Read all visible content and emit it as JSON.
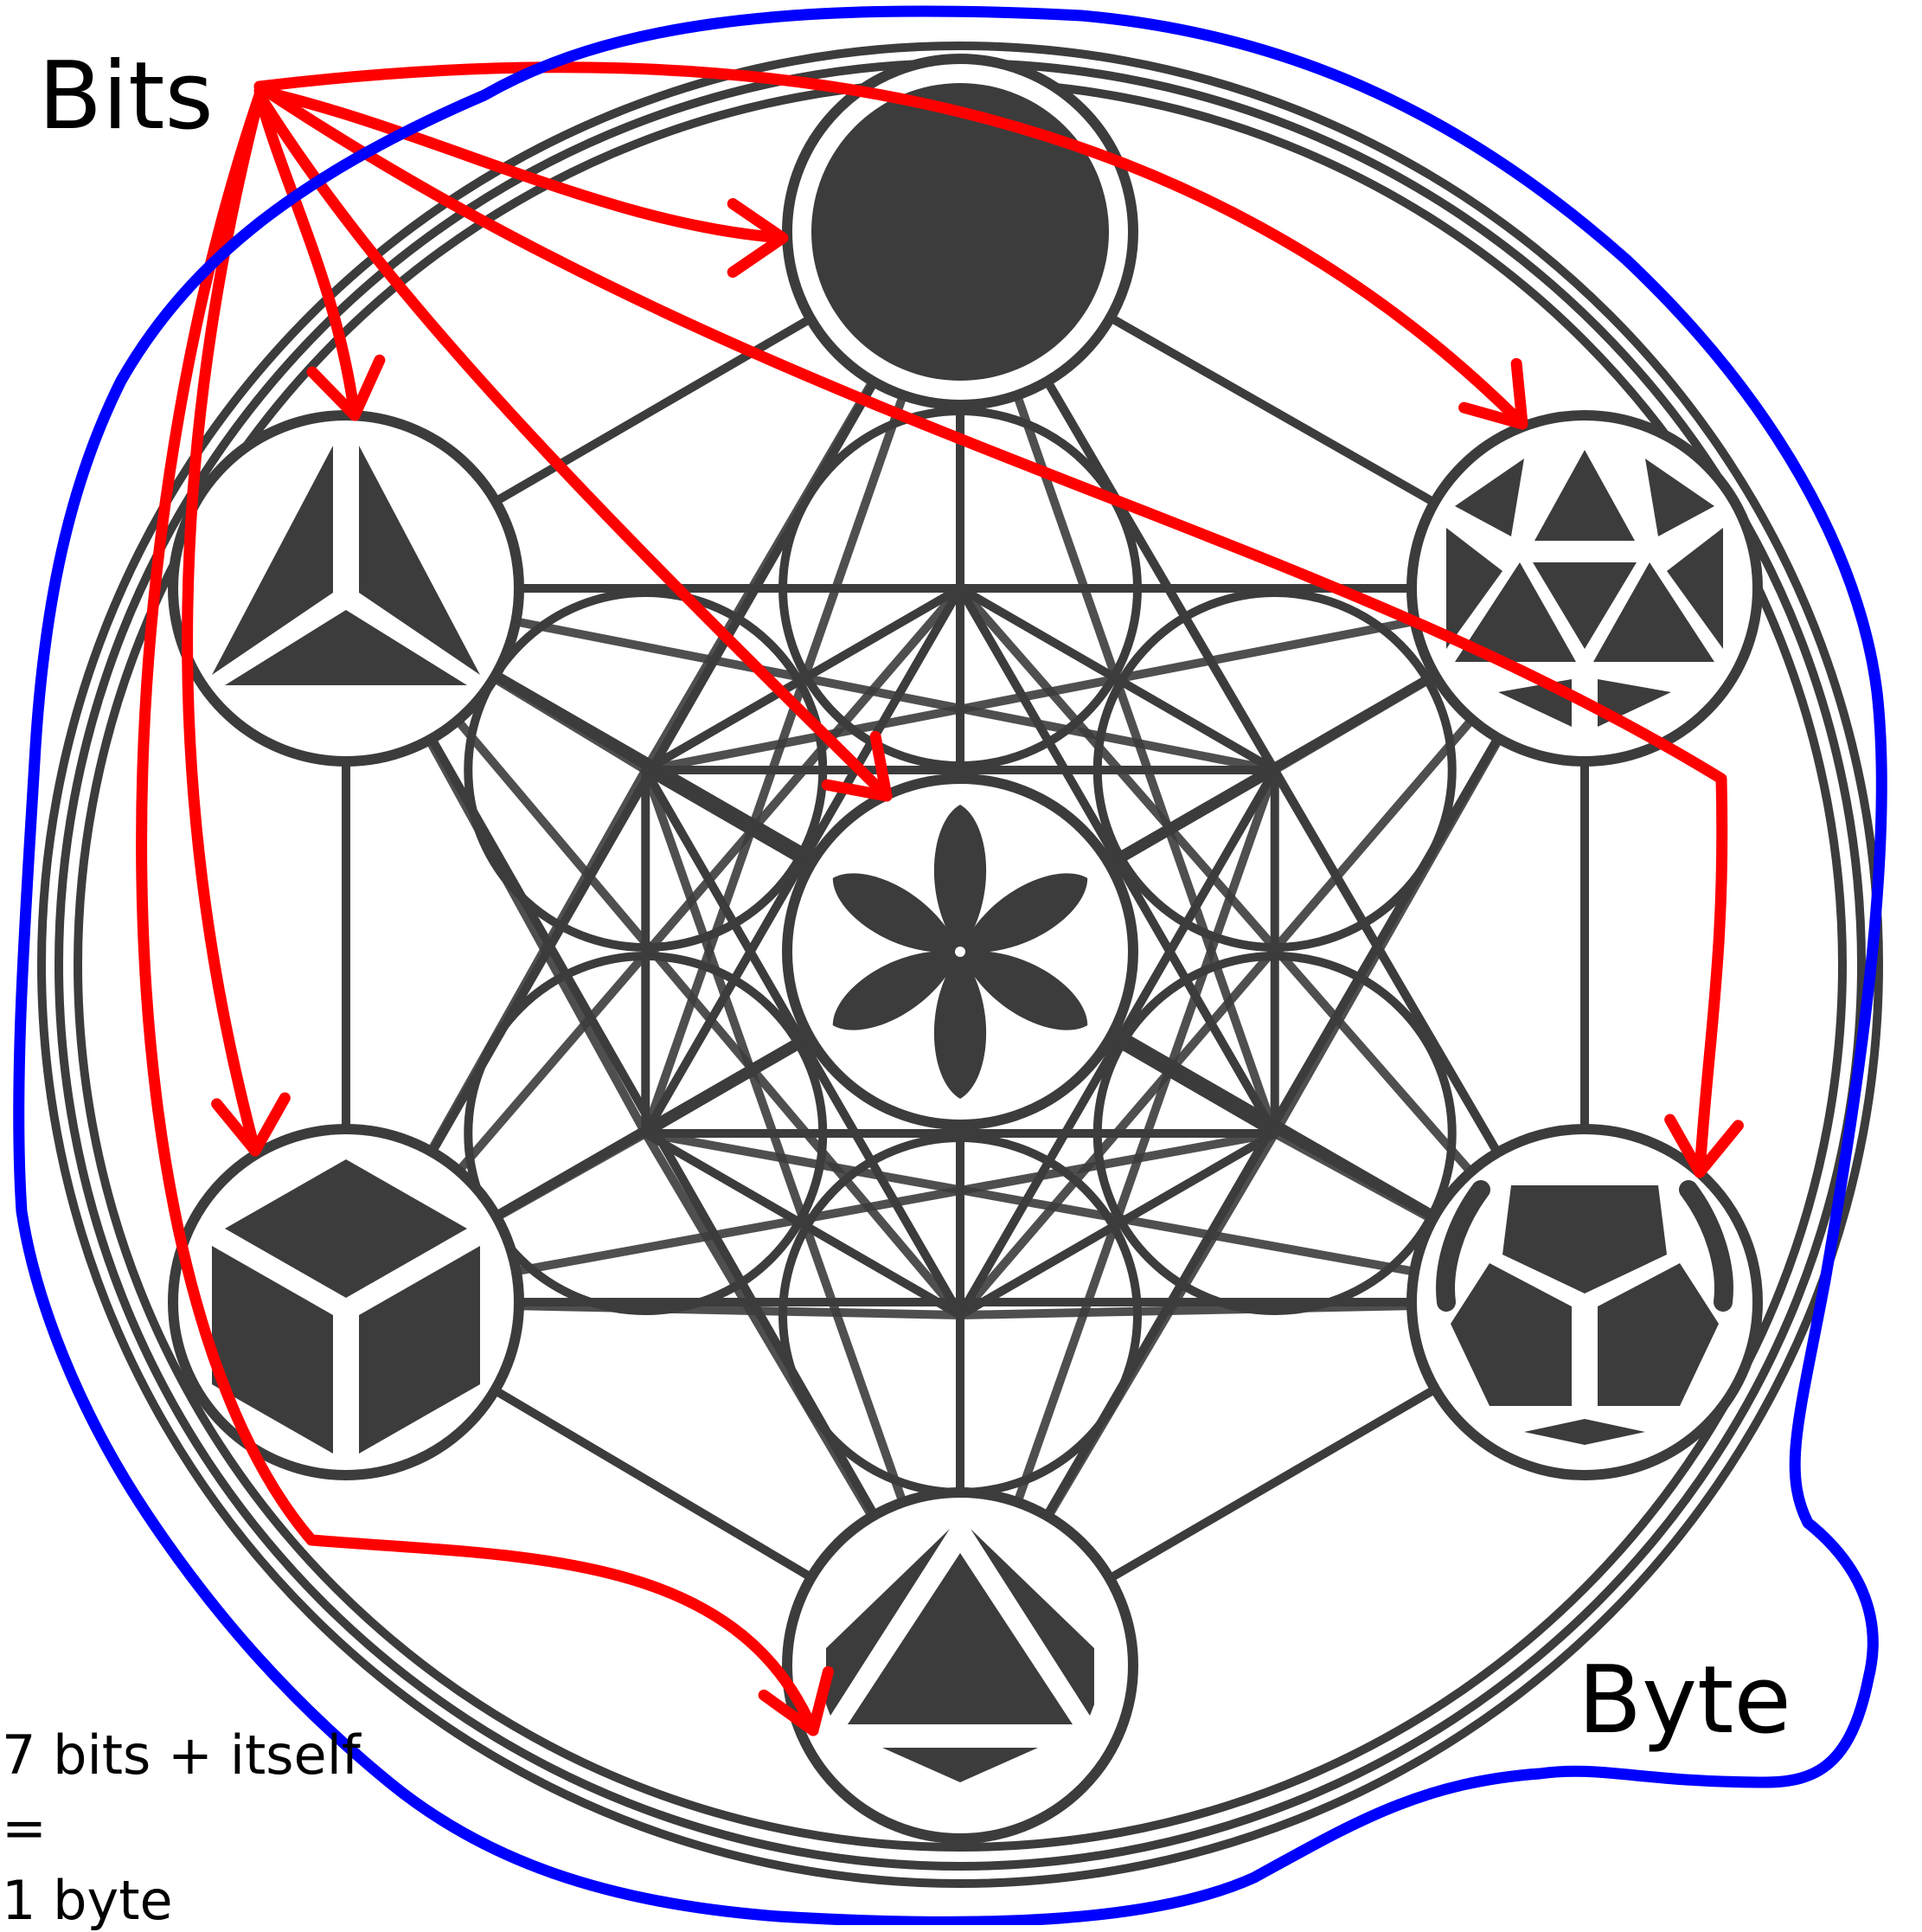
{
  "labels": {
    "bits": "Bits",
    "byte": "Byte"
  },
  "note": {
    "line1": "7 bits + itself",
    "line2": "=",
    "line3": "1 byte"
  },
  "colors": {
    "ink": "#3c3c3c",
    "annotation_red": "#ff0000",
    "annotation_blue": "#0000ff",
    "background": "#ffffff"
  },
  "nodes": [
    {
      "id": "top",
      "icon": "sphere-icon"
    },
    {
      "id": "upper-left",
      "icon": "tetrahedron-icon"
    },
    {
      "id": "upper-right",
      "icon": "icosahedron-icon"
    },
    {
      "id": "center",
      "icon": "seed-of-life-icon"
    },
    {
      "id": "lower-left",
      "icon": "cube-icon"
    },
    {
      "id": "lower-right",
      "icon": "dodecahedron-icon"
    },
    {
      "id": "bottom",
      "icon": "octahedron-icon"
    }
  ],
  "arrows": [
    {
      "from": "bits",
      "to": "top"
    },
    {
      "from": "bits",
      "to": "upper-left"
    },
    {
      "from": "bits",
      "to": "upper-right"
    },
    {
      "from": "bits",
      "to": "center"
    },
    {
      "from": "bits",
      "to": "lower-left"
    },
    {
      "from": "bits",
      "to": "lower-right"
    },
    {
      "from": "bits",
      "to": "bottom"
    }
  ]
}
